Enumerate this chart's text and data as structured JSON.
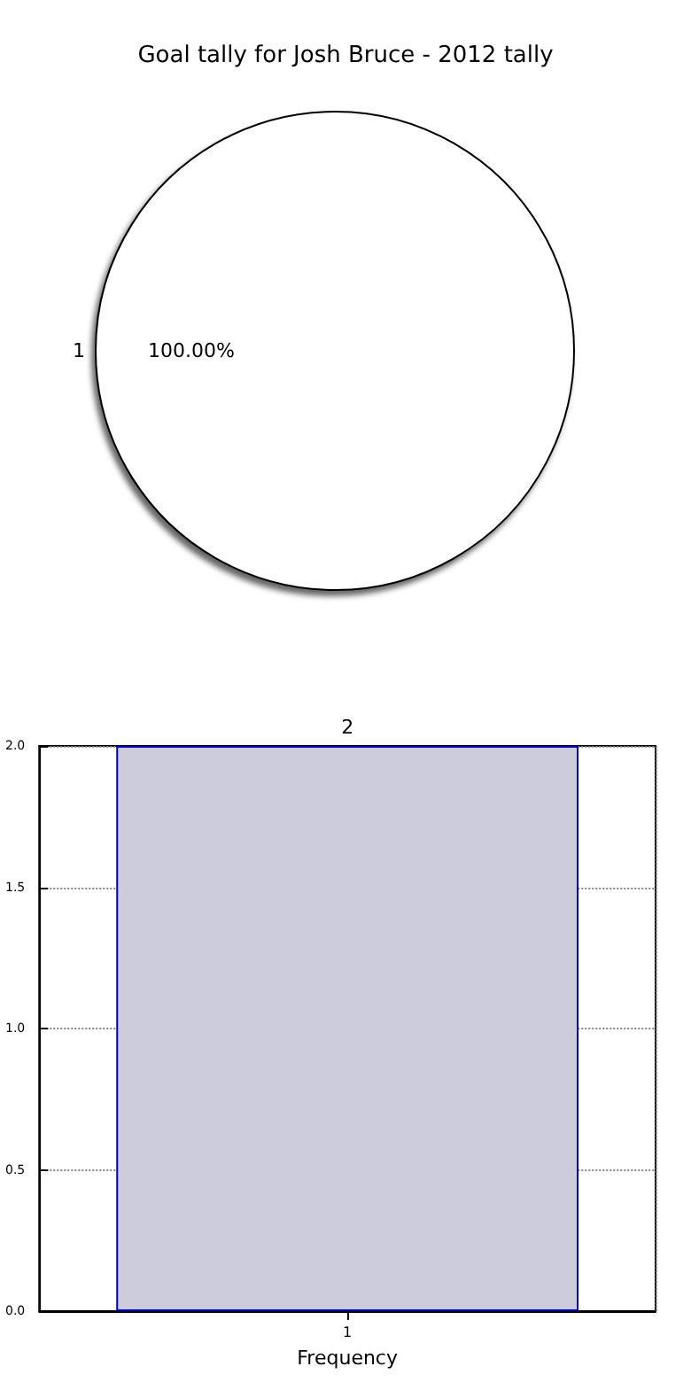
{
  "chart_data": [
    {
      "type": "pie",
      "title": "Goal tally for Josh Bruce - 2012 tally",
      "categories": [
        "1"
      ],
      "values": [
        100
      ],
      "colors": [
        "#ffffff"
      ],
      "value_labels": [
        "100.00%"
      ]
    },
    {
      "type": "bar",
      "categories": [
        "1"
      ],
      "values": [
        2
      ],
      "color": "#ccccdd",
      "xlabel": "Frequency",
      "ylim": [
        0,
        2
      ],
      "yticks": [
        {
          "value": 0,
          "label": "0.0"
        },
        {
          "value": 0.5,
          "label": "0.5"
        },
        {
          "value": 1,
          "label": "1.0"
        },
        {
          "value": 1.5,
          "label": "1.5"
        },
        {
          "value": 2,
          "label": "2.0"
        }
      ],
      "grid": true,
      "data_labels": true
    }
  ]
}
